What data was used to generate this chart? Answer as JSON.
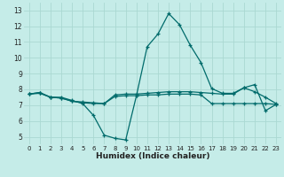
{
  "xlabel": "Humidex (Indice chaleur)",
  "xlim": [
    -0.5,
    23.5
  ],
  "ylim": [
    4.5,
    13.5
  ],
  "xticks": [
    0,
    1,
    2,
    3,
    4,
    5,
    6,
    7,
    8,
    9,
    10,
    11,
    12,
    13,
    14,
    15,
    16,
    17,
    18,
    19,
    20,
    21,
    22,
    23
  ],
  "yticks": [
    5,
    6,
    7,
    8,
    9,
    10,
    11,
    12,
    13
  ],
  "bg_color": "#c5ece8",
  "grid_color": "#aad8d2",
  "line_color": "#006b6b",
  "line1_x": [
    0,
    1,
    2,
    3,
    4,
    5,
    6,
    7,
    8,
    9,
    10,
    11,
    12,
    13,
    14,
    15,
    16,
    17,
    18,
    19,
    20,
    21,
    22,
    23
  ],
  "line1_y": [
    7.7,
    7.8,
    7.5,
    7.5,
    7.3,
    7.1,
    6.35,
    5.1,
    4.9,
    4.8,
    7.6,
    10.7,
    11.5,
    12.8,
    12.1,
    10.8,
    9.7,
    8.05,
    7.75,
    7.75,
    8.1,
    8.3,
    6.65,
    7.05
  ],
  "line2_x": [
    0,
    1,
    2,
    3,
    4,
    5,
    6,
    7,
    8,
    9,
    10,
    11,
    12,
    13,
    14,
    15,
    16,
    17,
    18,
    19,
    20,
    21,
    22,
    23
  ],
  "line2_y": [
    7.7,
    7.8,
    7.5,
    7.45,
    7.25,
    7.2,
    7.15,
    7.1,
    7.65,
    7.7,
    7.7,
    7.75,
    7.8,
    7.85,
    7.85,
    7.85,
    7.8,
    7.75,
    7.7,
    7.7,
    8.1,
    7.85,
    7.5,
    7.1
  ],
  "line3_x": [
    0,
    1,
    2,
    3,
    4,
    5,
    6,
    7,
    8,
    9,
    10,
    11,
    12,
    13,
    14,
    15,
    16,
    17,
    18,
    19,
    20,
    21,
    22,
    23
  ],
  "line3_y": [
    7.7,
    7.75,
    7.5,
    7.45,
    7.25,
    7.15,
    7.1,
    7.1,
    7.55,
    7.6,
    7.6,
    7.65,
    7.65,
    7.7,
    7.7,
    7.7,
    7.65,
    7.1,
    7.1,
    7.1,
    7.1,
    7.1,
    7.1,
    7.05
  ]
}
